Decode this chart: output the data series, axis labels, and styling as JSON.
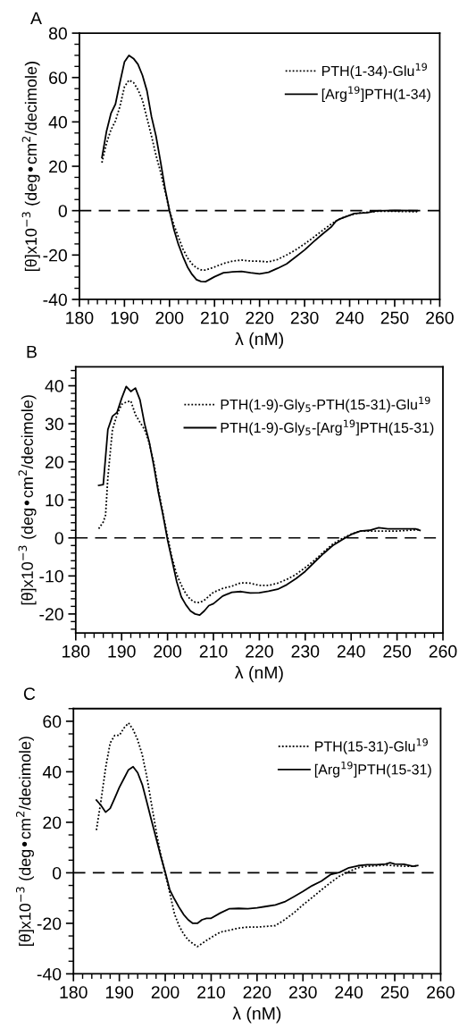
{
  "chart_data": [
    {
      "type": "line",
      "title": "A",
      "xlabel": "λ (nM)",
      "ylabel": "[θ]x10$^{−3}$ (deg•cm$^{2}$/decimole)",
      "xlim": [
        180,
        260
      ],
      "xticks": [
        180,
        190,
        200,
        210,
        220,
        230,
        240,
        250,
        260
      ],
      "ylim": [
        -40,
        80
      ],
      "yticks": [
        -40,
        -20,
        0,
        20,
        40,
        60,
        80
      ],
      "legend": "top right",
      "grid": false,
      "ref_lines": [
        {
          "axis": "y",
          "value": 0,
          "line_style": "dashed",
          "color": "#000000"
        }
      ],
      "series": [
        {
          "name": "PTH(1-34)-Glu$^{19}$",
          "color": "#000000",
          "line_style": "dotted",
          "x": [
            185,
            186,
            187,
            188,
            189,
            190,
            191,
            192,
            193,
            194,
            195,
            196,
            197,
            198,
            199,
            200,
            201,
            202,
            203,
            204,
            205,
            206,
            207,
            208,
            210,
            212,
            214,
            216,
            218,
            220,
            222,
            224,
            226,
            228,
            230,
            232,
            234,
            236,
            238,
            240,
            242,
            244,
            246,
            250,
            255
          ],
          "values": [
            21.6,
            30.3,
            36.4,
            40.4,
            47,
            55.8,
            58.8,
            57.8,
            54.5,
            49.8,
            41.7,
            33.7,
            25,
            17.6,
            8.9,
            0,
            -6.6,
            -12,
            -17.3,
            -21.3,
            -24,
            -25.8,
            -26.7,
            -26.8,
            -25.4,
            -23.8,
            -22.7,
            -22.3,
            -22.7,
            -22.8,
            -23.1,
            -22,
            -20,
            -17.7,
            -15,
            -12,
            -8.9,
            -5.9,
            -3.5,
            -2.1,
            -1.1,
            -0.7,
            -0.3,
            -0.3,
            -0.5
          ]
        },
        {
          "name": "[Arg$^{19}$]PTH(1-34)",
          "color": "#000000",
          "line_style": "solid",
          "x": [
            185,
            186,
            187,
            188,
            189,
            190,
            191,
            192,
            193,
            194,
            195,
            196,
            197,
            198,
            199,
            200,
            201,
            202,
            203,
            204,
            205,
            206,
            207,
            208,
            210,
            212,
            214,
            216,
            218,
            220,
            222,
            224,
            226,
            228,
            230,
            232,
            234,
            236,
            237,
            238,
            240,
            241,
            244,
            246,
            250,
            255
          ],
          "values": [
            23.9,
            35.6,
            43.8,
            48,
            57.8,
            67,
            70,
            68.6,
            66,
            61,
            54,
            42.4,
            33.7,
            22.3,
            10.2,
            0,
            -8.6,
            -15.3,
            -20.7,
            -25.4,
            -28.7,
            -31.1,
            -31.9,
            -32,
            -29.8,
            -28,
            -27.6,
            -27.4,
            -28,
            -28.5,
            -27.8,
            -26,
            -24,
            -20.9,
            -17.7,
            -14,
            -10.5,
            -7.2,
            -4.6,
            -3.6,
            -2.1,
            -1.3,
            -0.9,
            -0.1,
            0.1,
            0
          ]
        }
      ]
    },
    {
      "type": "line",
      "title": "B",
      "xlabel": "λ (nM)",
      "ylabel": "[θ]x10$^{−3}$ (deg•cm$^{2}$/decimole)",
      "xlim": [
        180,
        260
      ],
      "xticks": [
        180,
        190,
        200,
        210,
        220,
        230,
        240,
        250,
        260
      ],
      "ylim": [
        -25,
        45
      ],
      "yticks": [
        -20,
        -10,
        0,
        10,
        20,
        30,
        40
      ],
      "legend": "top right",
      "grid": false,
      "ref_lines": [
        {
          "axis": "y",
          "value": 0,
          "line_style": "dashed",
          "color": "#000000"
        }
      ],
      "series": [
        {
          "name": "PTH(1-9)-Gly$_{5}$-PTH(15-31)-Glu$^{19}$",
          "color": "#000000",
          "line_style": "dotted",
          "x": [
            185,
            186,
            186.5,
            187,
            188,
            189,
            190,
            191,
            192,
            193,
            194,
            195,
            196,
            197,
            198,
            199,
            200,
            201,
            202,
            203,
            204,
            205,
            206,
            207,
            208,
            210,
            212,
            214,
            216,
            218,
            220,
            222,
            224,
            226,
            228,
            230,
            232,
            234,
            236,
            238,
            240,
            242,
            244,
            246,
            250,
            255
          ],
          "values": [
            2.4,
            4.2,
            6,
            15.9,
            28.5,
            32.4,
            35.1,
            35.7,
            36,
            32.4,
            30.4,
            28.5,
            25,
            19.8,
            12.8,
            6.5,
            0.4,
            -5.3,
            -9.6,
            -12.4,
            -14.7,
            -16.2,
            -16.9,
            -17,
            -16.4,
            -14.3,
            -13.3,
            -12.7,
            -11.8,
            -11.9,
            -12.5,
            -12.5,
            -11.9,
            -10.9,
            -9.6,
            -7.8,
            -5.9,
            -3.7,
            -1.6,
            -0.2,
            1,
            1.8,
            1.8,
            1.8,
            1.8,
            2.2
          ]
        },
        {
          "name": "PTH(1-9)-Gly$_{5}$-[Arg$^{19}$]PTH(15-31)",
          "color": "#000000",
          "line_style": "solid",
          "x": [
            185,
            186,
            187,
            188,
            189,
            190,
            191,
            192,
            193,
            194,
            195,
            196,
            197,
            198,
            199,
            200,
            201,
            202,
            203,
            204,
            205,
            206,
            207,
            208,
            209,
            210,
            212,
            214,
            216,
            218,
            220,
            222,
            224,
            226,
            228,
            230,
            232,
            234,
            236,
            238,
            240,
            242,
            244,
            246,
            248,
            250,
            252,
            254,
            255
          ],
          "values": [
            13.8,
            14,
            28.5,
            32,
            33,
            36.7,
            39.8,
            38.5,
            39.4,
            36.3,
            30,
            25.3,
            19,
            12,
            6.1,
            -0.5,
            -6,
            -11.5,
            -15.5,
            -17.6,
            -19.2,
            -20,
            -20.3,
            -19.2,
            -17.8,
            -17.3,
            -15.3,
            -14.3,
            -14.1,
            -14.5,
            -14.4,
            -14,
            -13.5,
            -12.3,
            -10.7,
            -8.8,
            -6.4,
            -4.1,
            -2,
            -0.5,
            0.9,
            1.8,
            2,
            2.7,
            2.4,
            2.4,
            2.4,
            2.4,
            2
          ]
        }
      ]
    },
    {
      "type": "line",
      "title": "C",
      "xlabel": "λ (nM)",
      "ylabel": "[θ]x10$^{−3}$ (deg•cm$^{2}$/decimole)",
      "xlim": [
        180,
        260
      ],
      "xticks": [
        180,
        190,
        200,
        210,
        220,
        230,
        240,
        250,
        260
      ],
      "ylim": [
        -40,
        65
      ],
      "yticks": [
        -40,
        -20,
        0,
        20,
        40,
        60
      ],
      "legend": "top right",
      "grid": false,
      "ref_lines": [
        {
          "axis": "y",
          "value": 0,
          "line_style": "dashed",
          "color": "#000000"
        }
      ],
      "series": [
        {
          "name": "PTH(15-31)-Glu$^{19}$",
          "color": "#000000",
          "line_style": "dotted",
          "x": [
            185,
            186,
            187,
            188,
            189,
            190,
            191,
            192,
            193,
            194,
            195,
            196,
            197,
            198,
            199,
            200,
            201,
            202,
            203,
            204,
            205,
            206,
            207,
            208,
            210,
            212,
            214,
            216,
            218,
            220,
            222,
            224,
            226,
            228,
            230,
            232,
            234,
            236,
            238,
            240,
            242,
            244,
            246,
            248,
            250,
            252,
            254,
            255
          ],
          "values": [
            16.9,
            28.5,
            41.4,
            51.4,
            54.4,
            54.4,
            57.3,
            59.3,
            56.7,
            52.6,
            46.7,
            37.9,
            27.3,
            16.7,
            7.3,
            -0.4,
            -8,
            -16.2,
            -20.9,
            -24.2,
            -26.6,
            -28,
            -29.2,
            -28,
            -25.6,
            -23.5,
            -22.7,
            -21.9,
            -21.5,
            -21.5,
            -21.2,
            -20.9,
            -18.6,
            -15.9,
            -12.7,
            -9.8,
            -6.8,
            -3.9,
            -1.3,
            0.5,
            2,
            2.6,
            2.8,
            3.1,
            2.8,
            2.6,
            2.6,
            2.8
          ]
        },
        {
          "name": "[Arg$^{19}$]PTH(15-31)",
          "color": "#000000",
          "line_style": "solid",
          "x": [
            185,
            186,
            187,
            188,
            189,
            190,
            191,
            192,
            193,
            194,
            195,
            196,
            197,
            198,
            199,
            200,
            201,
            202,
            203,
            204,
            205,
            206,
            207,
            208,
            209,
            210,
            212,
            214,
            216,
            218,
            220,
            222,
            224,
            226,
            228,
            230,
            232,
            234,
            236,
            238,
            240,
            242,
            244,
            246,
            248,
            249,
            250,
            252,
            254,
            255
          ],
          "values": [
            28.8,
            26.7,
            24,
            25.5,
            29.6,
            33.8,
            37.3,
            40.8,
            42,
            39.6,
            34.9,
            27.9,
            20.8,
            13.8,
            6.7,
            0.2,
            -6.8,
            -10.4,
            -13.6,
            -16.5,
            -18.6,
            -20,
            -20,
            -18.6,
            -18,
            -18,
            -15.9,
            -14.2,
            -14.1,
            -14.2,
            -13.9,
            -13.3,
            -12.7,
            -11.5,
            -9.5,
            -7.4,
            -5.1,
            -3.3,
            -0.7,
            0.2,
            2,
            2.8,
            3.2,
            3.2,
            3.5,
            4,
            3.5,
            3.4,
            2.6,
            2.9
          ]
        }
      ]
    }
  ]
}
